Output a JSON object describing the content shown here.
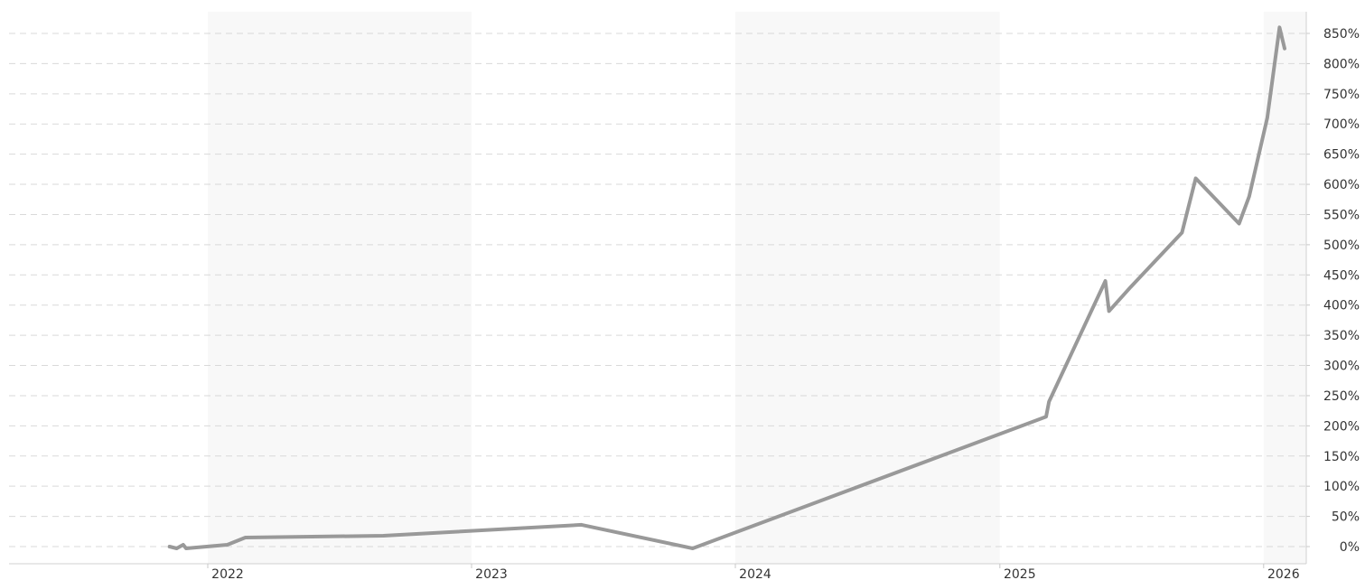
{
  "chart_data": {
    "type": "line",
    "title": "",
    "xlabel": "",
    "ylabel": "",
    "x_tick_labels": [
      "2022",
      "2023",
      "2024",
      "2025",
      "2026"
    ],
    "y_tick_labels": [
      "0%",
      "50%",
      "100%",
      "150%",
      "200%",
      "250%",
      "300%",
      "350%",
      "400%",
      "450%",
      "500%",
      "550%",
      "600%",
      "650%",
      "700%",
      "750%",
      "800%",
      "850%"
    ],
    "ylim": [
      0,
      850
    ],
    "xlim": [
      "2021-04-01",
      "2026-03-01"
    ],
    "y_unit": "%",
    "grid": true,
    "y_axis_position": "right",
    "shaded_years": [
      "2022",
      "2024",
      "2026"
    ],
    "series_color": "#999999",
    "band_color": "#f8f8f8",
    "series": [
      {
        "points": [
          [
            "2021-11-09",
            0
          ],
          [
            "2021-11-19",
            -3
          ],
          [
            "2021-11-28",
            3
          ],
          [
            "2021-12-02",
            -3
          ],
          [
            "2022-01-28",
            3
          ],
          [
            "2022-02-22",
            15
          ],
          [
            "2022-09-01",
            18
          ],
          [
            "2023-06-02",
            36
          ],
          [
            "2023-11-03",
            -3
          ],
          [
            "2025-03-06",
            215
          ],
          [
            "2025-03-10",
            240
          ],
          [
            "2025-05-27",
            440
          ],
          [
            "2025-06-01",
            390
          ],
          [
            "2025-07-01",
            430
          ],
          [
            "2025-09-10",
            520
          ],
          [
            "2025-09-29",
            610
          ],
          [
            "2025-11-28",
            535
          ],
          [
            "2025-12-12",
            580
          ],
          [
            "2026-01-06",
            710
          ],
          [
            "2026-01-23",
            860
          ],
          [
            "2026-01-30",
            825
          ]
        ]
      }
    ]
  }
}
